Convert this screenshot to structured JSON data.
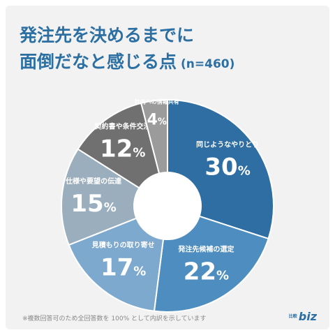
{
  "title": {
    "line1": "発注先を決めるまでに",
    "line2": "面倒だなと感じる点",
    "n": "(n=460)"
  },
  "footnote": "※複数回答可のため全回答数を 100% として内訳を示しています",
  "brand": {
    "prefix": "比較",
    "suffix": "biz"
  },
  "chart_data": {
    "type": "pie",
    "title": "発注先を決めるまでに面倒だなと感じる点",
    "categories": [
      "同じようなやりとり",
      "発注先候補の選定",
      "見積もりの取り寄せ",
      "仕様や要望の伝達",
      "契約書や条件交渉",
      "社内への情報共有"
    ],
    "values": [
      30,
      22,
      17,
      15,
      12,
      4
    ],
    "unit": "%",
    "colors": [
      "#2e6ea2",
      "#4d8dbf",
      "#7ea9ce",
      "#9aaebd",
      "#707070",
      "#9b9b9b"
    ],
    "n": 460
  }
}
